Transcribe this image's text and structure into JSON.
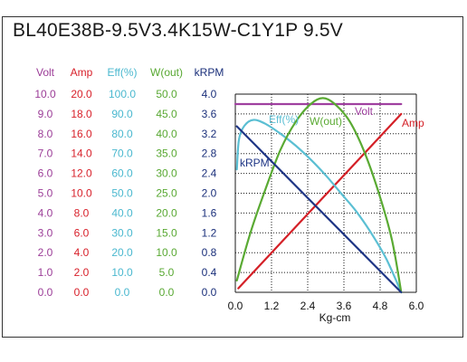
{
  "chart_data": {
    "type": "line",
    "title": "BL40E38B-9.5V3.4K15W-C1Y1P  9.5V",
    "xlabel": "Kg-cm",
    "x_ticks": [
      "0.0",
      "1.2",
      "2.4",
      "3.6",
      "4.8",
      "6.0"
    ],
    "xlim": [
      0,
      6.0
    ],
    "grid": true,
    "axes": [
      {
        "name": "Volt",
        "color": "#9b3c97",
        "ticks": [
          "10.0",
          "9.0",
          "8.0",
          "7.0",
          "6.0",
          "5.0",
          "4.0",
          "3.0",
          "2.0",
          "1.0",
          "0.0"
        ]
      },
      {
        "name": "Amp",
        "color": "#d8202a",
        "ticks": [
          "20.0",
          "18.0",
          "16.0",
          "14.0",
          "12.0",
          "10.0",
          "8.0",
          "6.0",
          "4.0",
          "2.0",
          "0.0"
        ]
      },
      {
        "name": "Eff(%)",
        "color": "#4ab8cf",
        "ticks": [
          "100.0",
          "90.0",
          "80.0",
          "70.0",
          "60.0",
          "50.0",
          "40.0",
          "30.0",
          "20.0",
          "10.0",
          "0.0"
        ]
      },
      {
        "name": "W(out)",
        "color": "#58a832",
        "ticks": [
          "50.0",
          "45.0",
          "40.0",
          "35.0",
          "30.0",
          "25.0",
          "20.0",
          "15.0",
          "10.0",
          "5.0",
          "0.0"
        ]
      },
      {
        "name": "kRPM",
        "color": "#1a2f7a",
        "ticks": [
          "4.0",
          "3.6",
          "3.2",
          "2.8",
          "2.4",
          "2.0",
          "1.6",
          "1.2",
          "0.8",
          "0.4",
          "0.0"
        ]
      }
    ],
    "series": [
      {
        "name": "Volt",
        "color": "#a040a0",
        "points": [
          [
            0,
            9.5
          ],
          [
            5.5,
            9.5
          ]
        ]
      },
      {
        "name": "Amp",
        "color": "#d42027",
        "points": [
          [
            0.1,
            0.4
          ],
          [
            5.5,
            18.0
          ]
        ]
      },
      {
        "name": "Eff(%)",
        "color": "#5bbfd3",
        "points": [
          [
            0.05,
            62
          ],
          [
            0.12,
            77
          ],
          [
            0.3,
            84
          ],
          [
            0.6,
            87
          ],
          [
            1.0,
            85
          ],
          [
            1.5,
            80
          ],
          [
            2.0,
            74
          ],
          [
            2.5,
            67
          ],
          [
            3.0,
            59
          ],
          [
            3.5,
            50
          ],
          [
            4.0,
            41
          ],
          [
            4.5,
            30
          ],
          [
            5.0,
            17
          ],
          [
            5.5,
            0
          ]
        ]
      },
      {
        "name": "W(out)",
        "color": "#5aaa33",
        "points": [
          [
            0.05,
            3
          ],
          [
            0.5,
            15
          ],
          [
            1.0,
            26
          ],
          [
            1.5,
            36
          ],
          [
            2.0,
            43
          ],
          [
            2.5,
            47.5
          ],
          [
            2.9,
            49
          ],
          [
            3.3,
            47.5
          ],
          [
            3.8,
            43
          ],
          [
            4.3,
            35
          ],
          [
            4.8,
            24
          ],
          [
            5.2,
            13
          ],
          [
            5.5,
            0
          ]
        ]
      },
      {
        "name": "kRPM",
        "color": "#1e3585",
        "points": [
          [
            0.05,
            3.35
          ],
          [
            5.5,
            0.0
          ]
        ]
      }
    ],
    "series_labels": [
      {
        "series": "Volt",
        "text": "Volt"
      },
      {
        "series": "Amp",
        "text": "Amp"
      },
      {
        "series": "Eff(%)",
        "text": "Eff(%)"
      },
      {
        "series": "W(out)",
        "text": "W(out)"
      },
      {
        "series": "kRPM",
        "text": "kRPM"
      }
    ]
  }
}
